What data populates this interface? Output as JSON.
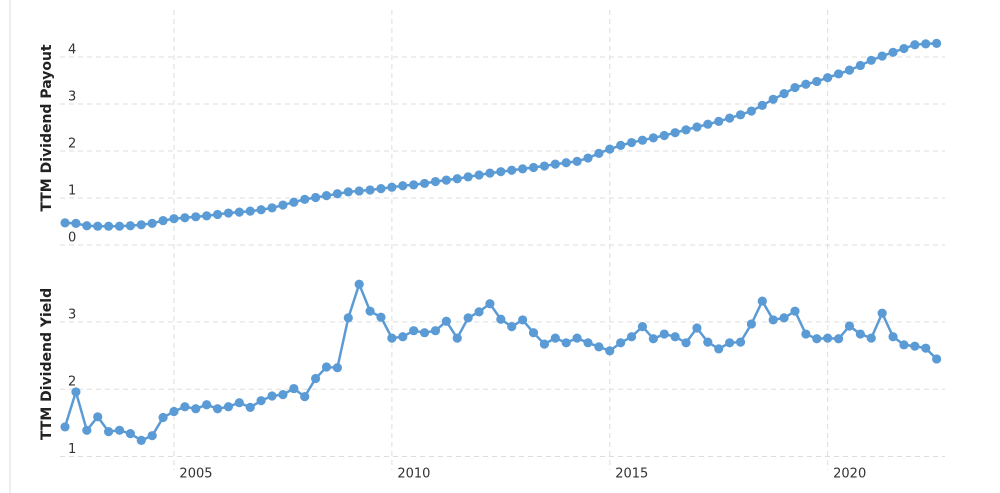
{
  "chart_data": [
    {
      "type": "line",
      "y_label": "TTM Dividend Payout",
      "color": "#5b9bd5",
      "x": [
        2002.5,
        2002.75,
        2003,
        2003.25,
        2003.5,
        2003.75,
        2004,
        2004.25,
        2004.5,
        2004.75,
        2005,
        2005.25,
        2005.5,
        2005.75,
        2006,
        2006.25,
        2006.5,
        2006.75,
        2007,
        2007.25,
        2007.5,
        2007.75,
        2008,
        2008.25,
        2008.5,
        2008.75,
        2009,
        2009.25,
        2009.5,
        2009.75,
        2010,
        2010.25,
        2010.5,
        2010.75,
        2011,
        2011.25,
        2011.5,
        2011.75,
        2012,
        2012.25,
        2012.5,
        2012.75,
        2013,
        2013.25,
        2013.5,
        2013.75,
        2014,
        2014.25,
        2014.5,
        2014.75,
        2015,
        2015.25,
        2015.5,
        2015.75,
        2016,
        2016.25,
        2016.5,
        2016.75,
        2017,
        2017.25,
        2017.5,
        2017.75,
        2018,
        2018.25,
        2018.5,
        2018.75,
        2019,
        2019.25,
        2019.5,
        2019.75,
        2020,
        2020.25,
        2020.5,
        2020.75,
        2021,
        2021.25,
        2021.5,
        2021.75,
        2022,
        2022.25,
        2022.5
      ],
      "values": [
        0.47,
        0.46,
        0.41,
        0.4,
        0.4,
        0.4,
        0.41,
        0.43,
        0.46,
        0.52,
        0.56,
        0.58,
        0.6,
        0.62,
        0.65,
        0.68,
        0.7,
        0.72,
        0.75,
        0.79,
        0.85,
        0.91,
        0.97,
        1.01,
        1.05,
        1.09,
        1.13,
        1.15,
        1.17,
        1.2,
        1.23,
        1.26,
        1.28,
        1.31,
        1.35,
        1.38,
        1.41,
        1.45,
        1.49,
        1.53,
        1.56,
        1.59,
        1.62,
        1.65,
        1.68,
        1.72,
        1.75,
        1.78,
        1.85,
        1.95,
        2.04,
        2.12,
        2.18,
        2.23,
        2.28,
        2.33,
        2.39,
        2.45,
        2.51,
        2.57,
        2.63,
        2.7,
        2.77,
        2.85,
        2.97,
        3.1,
        3.22,
        3.35,
        3.42,
        3.48,
        3.56,
        3.64,
        3.72,
        3.82,
        3.93,
        4.02,
        4.1,
        4.18,
        4.26,
        4.28,
        4.29
      ],
      "xlim": [
        2002.27,
        2023.61
      ],
      "ylim": [
        0,
        5
      ],
      "yticks": [
        0,
        1,
        2,
        3,
        4
      ],
      "grid": true
    },
    {
      "type": "line",
      "y_label": "TTM Dividend Yield",
      "color": "#5b9bd5",
      "x": [
        2002.5,
        2002.75,
        2003,
        2003.25,
        2003.5,
        2003.75,
        2004,
        2004.25,
        2004.5,
        2004.75,
        2005,
        2005.25,
        2005.5,
        2005.75,
        2006,
        2006.25,
        2006.5,
        2006.75,
        2007,
        2007.25,
        2007.5,
        2007.75,
        2008,
        2008.25,
        2008.5,
        2008.75,
        2009,
        2009.25,
        2009.5,
        2009.75,
        2010,
        2010.25,
        2010.5,
        2010.75,
        2011,
        2011.25,
        2011.5,
        2011.75,
        2012,
        2012.25,
        2012.5,
        2012.75,
        2013,
        2013.25,
        2013.5,
        2013.75,
        2014,
        2014.25,
        2014.5,
        2014.75,
        2015,
        2015.25,
        2015.5,
        2015.75,
        2016,
        2016.25,
        2016.5,
        2016.75,
        2017,
        2017.25,
        2017.5,
        2017.75,
        2018,
        2018.25,
        2018.5,
        2018.75,
        2019,
        2019.25,
        2019.5,
        2019.75,
        2020,
        2020.25,
        2020.5,
        2020.75,
        2021,
        2021.25,
        2021.5,
        2021.75,
        2022,
        2022.25,
        2022.5
      ],
      "values": [
        1.44,
        1.96,
        1.39,
        1.59,
        1.37,
        1.39,
        1.34,
        1.24,
        1.31,
        1.58,
        1.67,
        1.74,
        1.71,
        1.77,
        1.71,
        1.74,
        1.8,
        1.73,
        1.83,
        1.9,
        1.92,
        2.01,
        1.89,
        2.16,
        2.33,
        2.32,
        3.06,
        3.56,
        3.16,
        3.07,
        2.76,
        2.78,
        2.87,
        2.84,
        2.87,
        3.01,
        2.76,
        3.06,
        3.15,
        3.27,
        3.04,
        2.93,
        3.03,
        2.84,
        2.67,
        2.76,
        2.69,
        2.76,
        2.69,
        2.63,
        2.57,
        2.69,
        2.78,
        2.93,
        2.75,
        2.82,
        2.78,
        2.69,
        2.91,
        2.7,
        2.6,
        2.69,
        2.7,
        2.97,
        3.31,
        3.03,
        3.06,
        3.16,
        2.82,
        2.75,
        2.76,
        2.75,
        2.94,
        2.82,
        2.76,
        3.13,
        2.78,
        2.66,
        2.64,
        2.61,
        2.45
      ],
      "xlim": [
        2002.27,
        2023.61
      ],
      "ylim": [
        0.8,
        3.95
      ],
      "yticks": [
        1,
        2,
        3
      ],
      "xticks": [
        2005,
        2010,
        2015,
        2020
      ],
      "grid": true
    }
  ]
}
